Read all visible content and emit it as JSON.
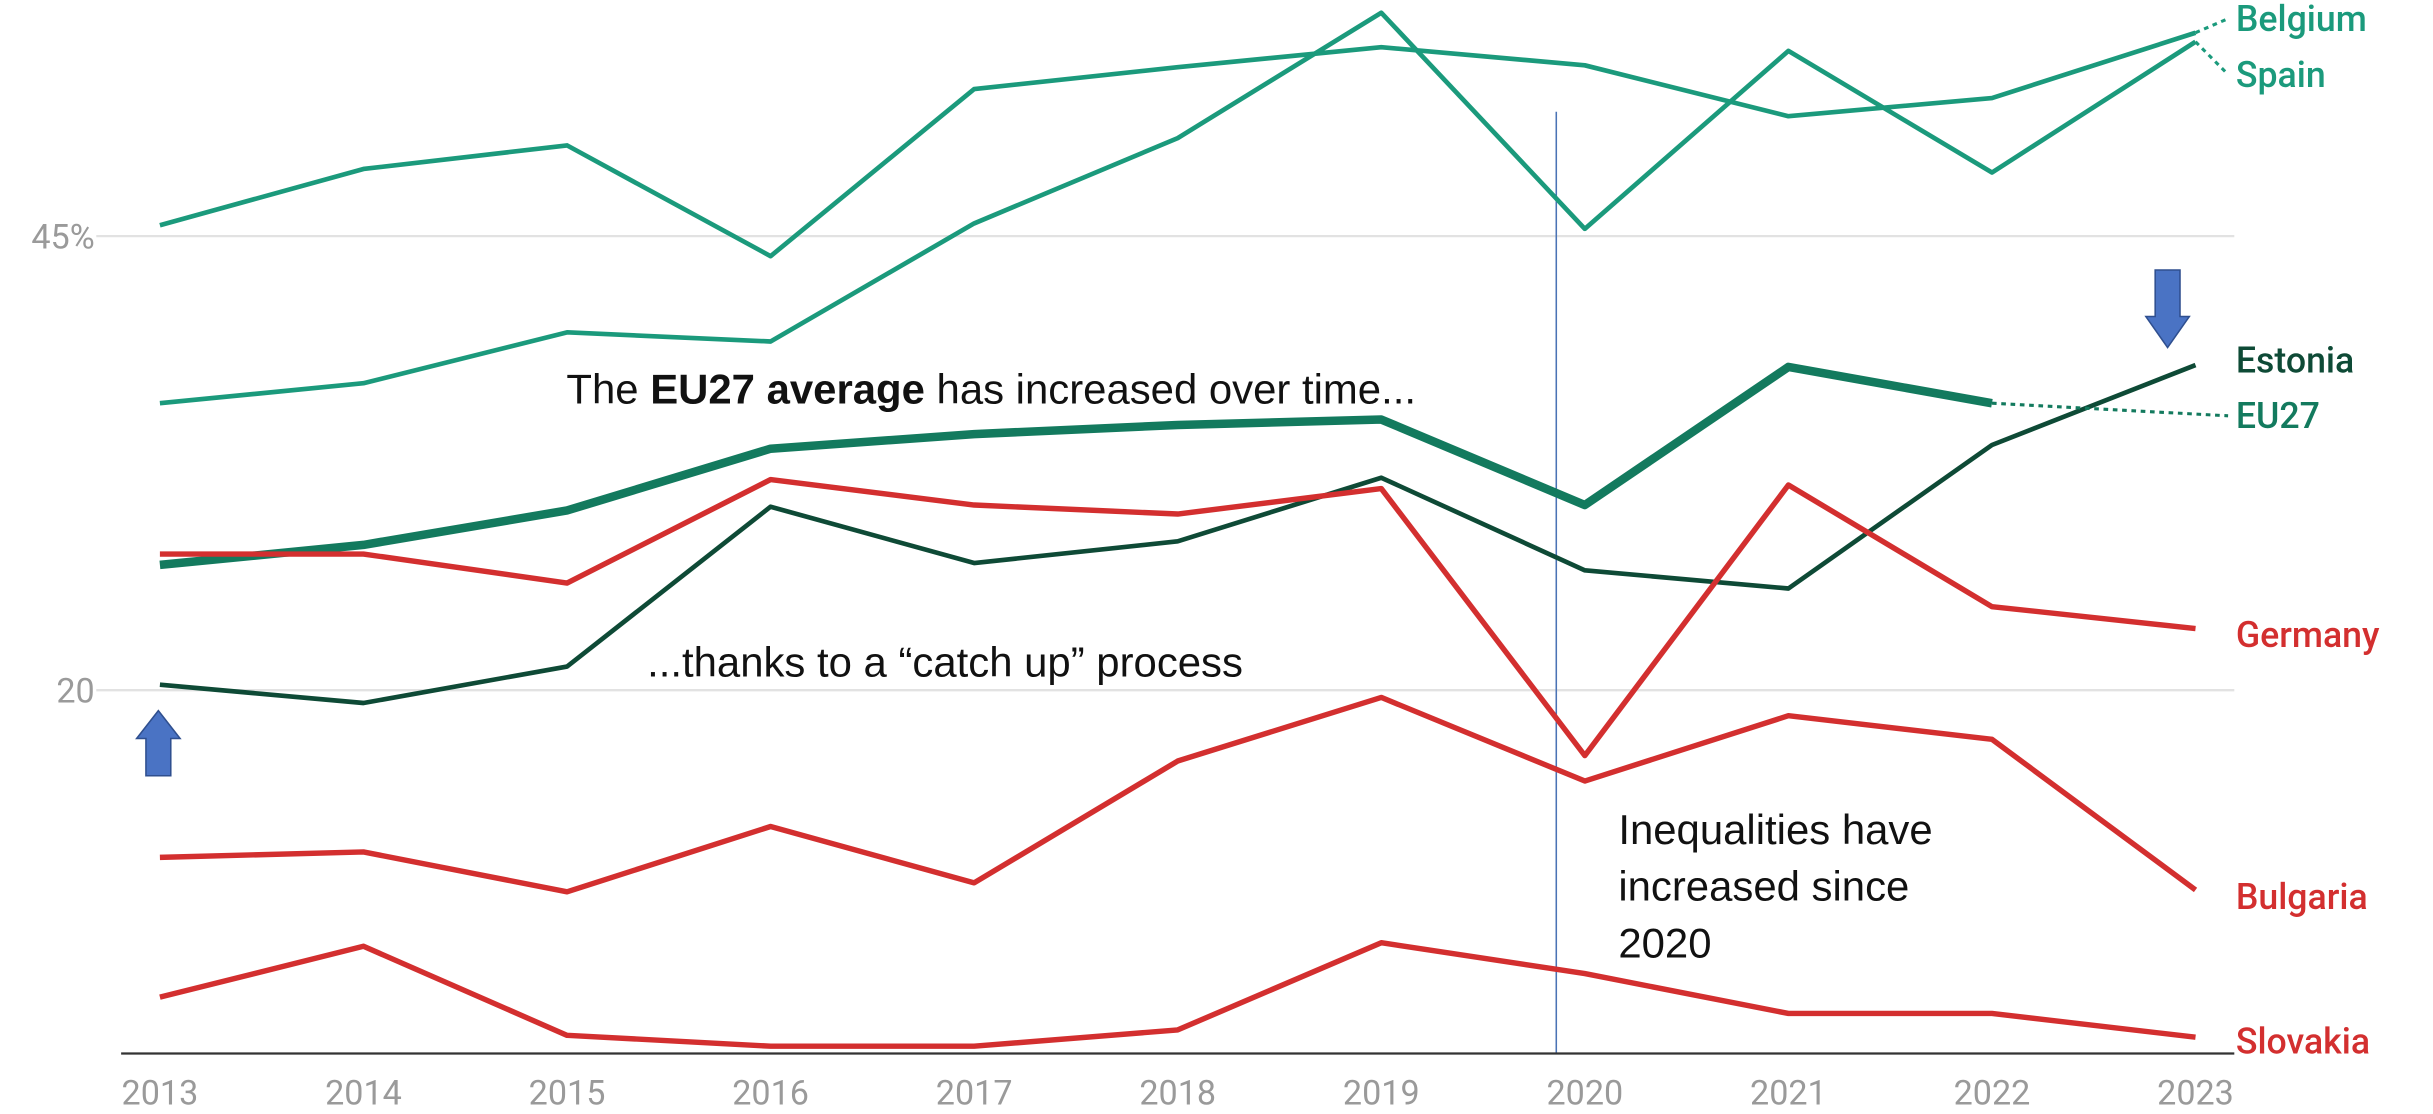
{
  "chart_data": {
    "type": "line",
    "categories": [
      "2013",
      "2014",
      "2015",
      "2016",
      "2017",
      "2018",
      "2019",
      "2020",
      "2021",
      "2022",
      "2023"
    ],
    "series": [
      {
        "name": "Belgium",
        "color": "#1b9a7c",
        "values": [
          45.6,
          48.7,
          50.0,
          43.9,
          53.1,
          54.3,
          55.4,
          54.4,
          51.6,
          52.6,
          56.2
        ]
      },
      {
        "name": "Spain",
        "color": "#1b9a7c",
        "values": [
          35.8,
          36.9,
          39.7,
          39.2,
          45.7,
          50.4,
          57.3,
          45.4,
          55.2,
          48.5,
          55.7
        ]
      },
      {
        "name": "EU27",
        "color": "#137a5e",
        "values": [
          26.9,
          28.0,
          29.9,
          33.3,
          34.1,
          34.6,
          34.9,
          30.2,
          37.8,
          35.8,
          null
        ]
      },
      {
        "name": "Estonia",
        "color": "#0e4a36",
        "values": [
          20.3,
          19.3,
          21.3,
          30.1,
          27.0,
          28.2,
          31.7,
          26.6,
          25.6,
          33.5,
          37.9
        ]
      },
      {
        "name": "Germany",
        "color": "#d32f2f",
        "values": [
          27.5,
          27.5,
          25.9,
          31.6,
          30.2,
          29.7,
          31.1,
          16.4,
          31.3,
          24.6,
          23.4
        ]
      },
      {
        "name": "Bulgaria",
        "color": "#d32f2f",
        "values": [
          10.8,
          11.1,
          8.9,
          12.5,
          9.4,
          16.1,
          19.6,
          15.0,
          18.6,
          17.3,
          9.0
        ]
      },
      {
        "name": "Slovakia",
        "color": "#d32f2f",
        "values": [
          3.1,
          5.9,
          1.0,
          0.4,
          0.4,
          1.3,
          6.1,
          4.4,
          2.2,
          2.2,
          0.9
        ]
      }
    ],
    "ylim": [
      0,
      58
    ],
    "yticks": [
      20,
      {
        "value": 45,
        "label": "45%"
      }
    ],
    "grid": true,
    "annotations": [
      [
        "The ",
        "EU27 average",
        " has increased over time..."
      ],
      [
        "...thanks to a “catch up” process"
      ],
      [
        "Inequalities have",
        "increased since",
        "2020"
      ]
    ]
  }
}
